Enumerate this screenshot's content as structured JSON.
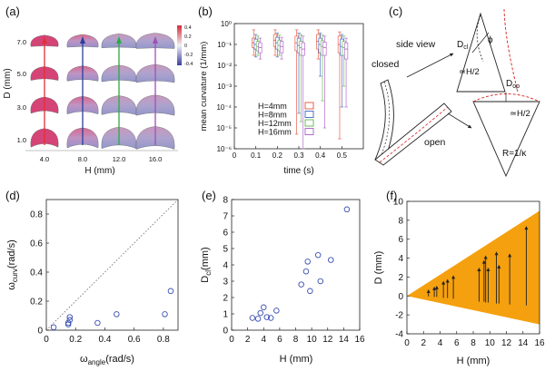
{
  "panels": {
    "a": {
      "label": "(a)",
      "xlabel": "H (mm)",
      "ylabel": "D (mm)",
      "x_ticks": [
        "4.0",
        "8.0",
        "12.0",
        "16.0"
      ],
      "y_ticks": [
        "1.0",
        "3.0",
        "5.0",
        "7.0"
      ],
      "colorbar_ticks": [
        "0.4",
        "0.2",
        "0",
        "-0.2",
        "-0.4"
      ],
      "arrow_colors": [
        "#e0303a",
        "#2a3f9a",
        "#2fa845",
        "#a24fb8"
      ]
    },
    "b": {
      "label": "(b)"
    },
    "c": {
      "label": "(c)",
      "side_view": "side view",
      "closed": "closed",
      "open": "open",
      "d_cl": "D",
      "d_cl_sub": "cl",
      "d_op": "D",
      "d_op_sub": "op",
      "phi": "ϕ",
      "h_half_1": "≃H/2",
      "h_half_2": "≃H/2",
      "radius": "R=1/κ"
    },
    "d": {
      "label": "(d)"
    },
    "e": {
      "label": "(e)"
    },
    "f": {
      "label": "(f)",
      "wedge_color": "#f5a00e"
    }
  },
  "chart_data": [
    {
      "panel": "b",
      "type": "box",
      "xlabel": "time (s)",
      "ylabel": "mean curvature (1/mm)",
      "xlim": [
        0,
        0.6
      ],
      "ylim_log10": [
        -6,
        0
      ],
      "x_ticks": [
        "0",
        "0.1",
        "0.2",
        "0.3",
        "0.4",
        "0.5"
      ],
      "y_ticks": [
        "10⁰",
        "10⁻¹",
        "10⁻²",
        "10⁻³",
        "10⁻⁴",
        "10⁻⁵",
        "10⁻⁶"
      ],
      "y_scale": "log",
      "legend_position": "lower-left",
      "series": [
        {
          "name": "H=4mm",
          "color": "#e8604c",
          "boxes": [
            {
              "t": 0.09,
              "lo": 0.03,
              "q1": 0.07,
              "med": 0.12,
              "q3": 0.2,
              "hi": 0.5
            },
            {
              "t": 0.19,
              "lo": 0.03,
              "q1": 0.08,
              "med": 0.16,
              "q3": 0.3,
              "hi": 0.5
            },
            {
              "t": 0.29,
              "lo": 5e-06,
              "q1": 0.05,
              "med": 0.12,
              "q3": 0.25,
              "hi": 0.5
            },
            {
              "t": 0.39,
              "lo": 0.02,
              "q1": 0.06,
              "med": 0.14,
              "q3": 0.3,
              "hi": 0.5
            },
            {
              "t": 0.49,
              "lo": 3e-06,
              "q1": 0.04,
              "med": 0.1,
              "q3": 0.25,
              "hi": 0.4
            }
          ]
        },
        {
          "name": "H=8mm",
          "color": "#4f73c9",
          "boxes": [
            {
              "t": 0.1,
              "lo": 0.025,
              "q1": 0.06,
              "med": 0.1,
              "q3": 0.18,
              "hi": 0.3
            },
            {
              "t": 0.2,
              "lo": 0.025,
              "q1": 0.06,
              "med": 0.12,
              "q3": 0.22,
              "hi": 0.35
            },
            {
              "t": 0.3,
              "lo": 5e-05,
              "q1": 0.04,
              "med": 0.09,
              "q3": 0.2,
              "hi": 0.35
            },
            {
              "t": 0.4,
              "lo": 0.003,
              "q1": 0.04,
              "med": 0.1,
              "q3": 0.2,
              "hi": 0.35
            },
            {
              "t": 0.5,
              "lo": 0.0001,
              "q1": 0.03,
              "med": 0.08,
              "q3": 0.18,
              "hi": 0.3
            }
          ]
        },
        {
          "name": "H=12mm",
          "color": "#6bbf59",
          "boxes": [
            {
              "t": 0.11,
              "lo": 0.03,
              "q1": 0.05,
              "med": 0.08,
              "q3": 0.14,
              "hi": 0.25
            },
            {
              "t": 0.21,
              "lo": 0.03,
              "q1": 0.05,
              "med": 0.09,
              "q3": 0.16,
              "hi": 0.28
            },
            {
              "t": 0.31,
              "lo": 2e-05,
              "q1": 0.03,
              "med": 0.07,
              "q3": 0.14,
              "hi": 0.3
            },
            {
              "t": 0.41,
              "lo": 0.0002,
              "q1": 0.03,
              "med": 0.08,
              "q3": 0.15,
              "hi": 0.28
            },
            {
              "t": 0.51,
              "lo": 0.001,
              "q1": 0.03,
              "med": 0.07,
              "q3": 0.14,
              "hi": 0.25
            }
          ]
        },
        {
          "name": "H=16mm",
          "color": "#b36bc9",
          "boxes": [
            {
              "t": 0.12,
              "lo": 0.02,
              "q1": 0.04,
              "med": 0.07,
              "q3": 0.12,
              "hi": 0.2
            },
            {
              "t": 0.22,
              "lo": 0.02,
              "q1": 0.04,
              "med": 0.08,
              "q3": 0.14,
              "hi": 0.22
            },
            {
              "t": 0.32,
              "lo": 1e-06,
              "q1": 0.03,
              "med": 0.06,
              "q3": 0.12,
              "hi": 0.25
            },
            {
              "t": 0.42,
              "lo": 1e-05,
              "q1": 0.03,
              "med": 0.07,
              "q3": 0.13,
              "hi": 0.25
            },
            {
              "t": 0.52,
              "lo": 0.0001,
              "q1": 0.02,
              "med": 0.06,
              "q3": 0.12,
              "hi": 0.2
            }
          ]
        }
      ]
    },
    {
      "panel": "d",
      "type": "scatter",
      "xlabel": "ω",
      "xlabel_sub": "angle",
      "xlabel_unit": "(rad/s)",
      "ylabel": "ω",
      "ylabel_sub": "curv",
      "ylabel_unit": "(rad/s)",
      "xlim": [
        0,
        0.9
      ],
      "ylim": [
        0,
        0.9
      ],
      "x_ticks": [
        "0",
        "0.2",
        "0.4",
        "0.6",
        "0.8"
      ],
      "y_ticks": [
        "0",
        "0.2",
        "0.4",
        "0.6",
        "0.8"
      ],
      "reference_line": "y=x",
      "points": [
        [
          0.05,
          0.02
        ],
        [
          0.15,
          0.04
        ],
        [
          0.15,
          0.05
        ],
        [
          0.16,
          0.07
        ],
        [
          0.16,
          0.09
        ],
        [
          0.35,
          0.05
        ],
        [
          0.48,
          0.11
        ],
        [
          0.81,
          0.11
        ],
        [
          0.85,
          0.27
        ]
      ]
    },
    {
      "panel": "e",
      "type": "scatter",
      "xlabel": "H (mm)",
      "ylabel": "D",
      "ylabel_sub": "cl",
      "ylabel_unit": "(mm)",
      "xlim": [
        0,
        16
      ],
      "ylim": [
        0,
        8
      ],
      "x_ticks": [
        "0",
        "2",
        "4",
        "6",
        "8",
        "10",
        "12",
        "14",
        "16"
      ],
      "y_ticks": [
        "0",
        "1",
        "2",
        "3",
        "4",
        "5",
        "6",
        "7",
        "8"
      ],
      "points": [
        [
          2.6,
          0.75
        ],
        [
          3.3,
          0.7
        ],
        [
          3.6,
          1.05
        ],
        [
          4.0,
          1.4
        ],
        [
          4.4,
          0.8
        ],
        [
          4.9,
          0.75
        ],
        [
          5.6,
          1.2
        ],
        [
          8.7,
          2.8
        ],
        [
          9.3,
          3.6
        ],
        [
          9.5,
          4.2
        ],
        [
          9.8,
          2.4
        ],
        [
          10.8,
          4.6
        ],
        [
          11.1,
          3.0
        ],
        [
          12.4,
          4.3
        ],
        [
          14.4,
          7.4
        ]
      ]
    },
    {
      "panel": "f",
      "type": "vector",
      "xlabel": "H (mm)",
      "ylabel": "D (mm)",
      "xlim": [
        0,
        16
      ],
      "ylim": [
        -4,
        10
      ],
      "x_ticks": [
        "0",
        "2",
        "4",
        "6",
        "8",
        "10",
        "12",
        "14",
        "16"
      ],
      "y_ticks": [
        "-4",
        "-2",
        "0",
        "2",
        "4",
        "6",
        "8",
        "10"
      ],
      "wedge": {
        "apex": [
          0,
          0
        ],
        "upper_end": [
          16,
          9
        ],
        "lower_end": [
          16,
          -3
        ]
      },
      "arrows": [
        [
          2.6,
          -0.05,
          0.7
        ],
        [
          3.3,
          -0.1,
          1.0
        ],
        [
          3.6,
          -0.1,
          1.1
        ],
        [
          4.4,
          -0.2,
          1.6
        ],
        [
          4.9,
          -0.2,
          1.8
        ],
        [
          5.6,
          -0.3,
          2.2
        ],
        [
          8.7,
          -0.6,
          3.0
        ],
        [
          9.3,
          -0.6,
          3.8
        ],
        [
          9.5,
          -0.7,
          4.3
        ],
        [
          9.8,
          -0.7,
          3.0
        ],
        [
          10.8,
          -0.8,
          4.7
        ],
        [
          11.1,
          -0.8,
          3.3
        ],
        [
          12.4,
          -0.9,
          4.5
        ],
        [
          14.4,
          -1.0,
          7.4
        ]
      ]
    }
  ]
}
